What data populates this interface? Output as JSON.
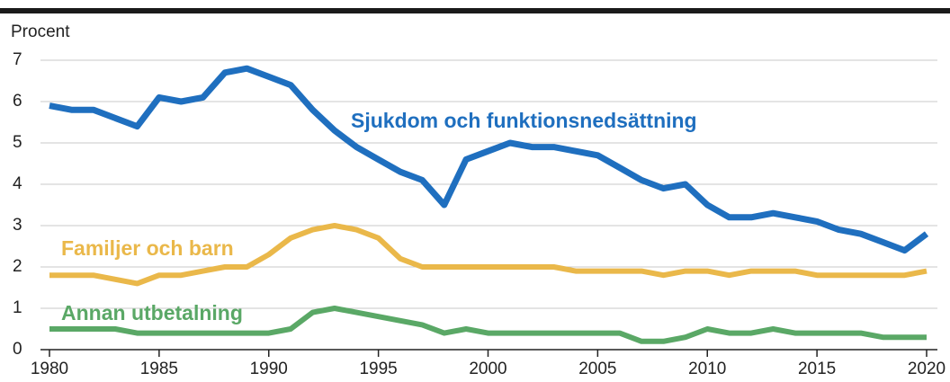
{
  "chart_data": {
    "type": "line",
    "y_label": "Procent",
    "x": [
      1980,
      1981,
      1982,
      1983,
      1984,
      1985,
      1986,
      1987,
      1988,
      1989,
      1990,
      1991,
      1992,
      1993,
      1994,
      1995,
      1996,
      1997,
      1998,
      1999,
      2000,
      2001,
      2002,
      2003,
      2004,
      2005,
      2006,
      2007,
      2008,
      2009,
      2010,
      2011,
      2012,
      2013,
      2014,
      2015,
      2016,
      2017,
      2018,
      2019,
      2020
    ],
    "xlim": [
      1980,
      2020
    ],
    "xticks": [
      1980,
      1985,
      1990,
      1995,
      2000,
      2005,
      2010,
      2015,
      2020
    ],
    "ylim": [
      0,
      7
    ],
    "yticks": [
      0,
      1,
      2,
      3,
      4,
      5,
      6,
      7
    ],
    "grid": true,
    "series": [
      {
        "name": "Sjukdom och funktionsnedsättning",
        "color": "#1f6fbf",
        "values": [
          5.9,
          5.8,
          5.8,
          5.6,
          5.4,
          6.1,
          6.0,
          6.1,
          6.7,
          6.8,
          6.6,
          6.4,
          5.8,
          5.3,
          4.9,
          4.6,
          4.3,
          4.1,
          3.5,
          4.6,
          4.8,
          5.0,
          4.9,
          4.9,
          4.8,
          4.7,
          4.4,
          4.1,
          3.9,
          4.0,
          3.5,
          3.2,
          3.2,
          3.3,
          3.2,
          3.1,
          2.9,
          2.8,
          2.6,
          2.4,
          2.8
        ]
      },
      {
        "name": "Familjer och barn",
        "color": "#eab84a",
        "values": [
          1.8,
          1.8,
          1.8,
          1.7,
          1.6,
          1.8,
          1.8,
          1.9,
          2.0,
          2.0,
          2.3,
          2.7,
          2.9,
          3.0,
          2.9,
          2.7,
          2.2,
          2.0,
          2.0,
          2.0,
          2.0,
          2.0,
          2.0,
          2.0,
          1.9,
          1.9,
          1.9,
          1.9,
          1.8,
          1.9,
          1.9,
          1.8,
          1.9,
          1.9,
          1.9,
          1.8,
          1.8,
          1.8,
          1.8,
          1.8,
          1.9
        ]
      },
      {
        "name": "Annan utbetalning",
        "color": "#5aa866",
        "values": [
          0.5,
          0.5,
          0.5,
          0.5,
          0.4,
          0.4,
          0.4,
          0.4,
          0.4,
          0.4,
          0.4,
          0.5,
          0.9,
          1.0,
          0.9,
          0.8,
          0.7,
          0.6,
          0.4,
          0.5,
          0.4,
          0.4,
          0.4,
          0.4,
          0.4,
          0.4,
          0.4,
          0.2,
          0.2,
          0.3,
          0.5,
          0.4,
          0.4,
          0.5,
          0.4,
          0.4,
          0.4,
          0.4,
          0.3,
          0.3,
          0.3
        ]
      }
    ]
  }
}
